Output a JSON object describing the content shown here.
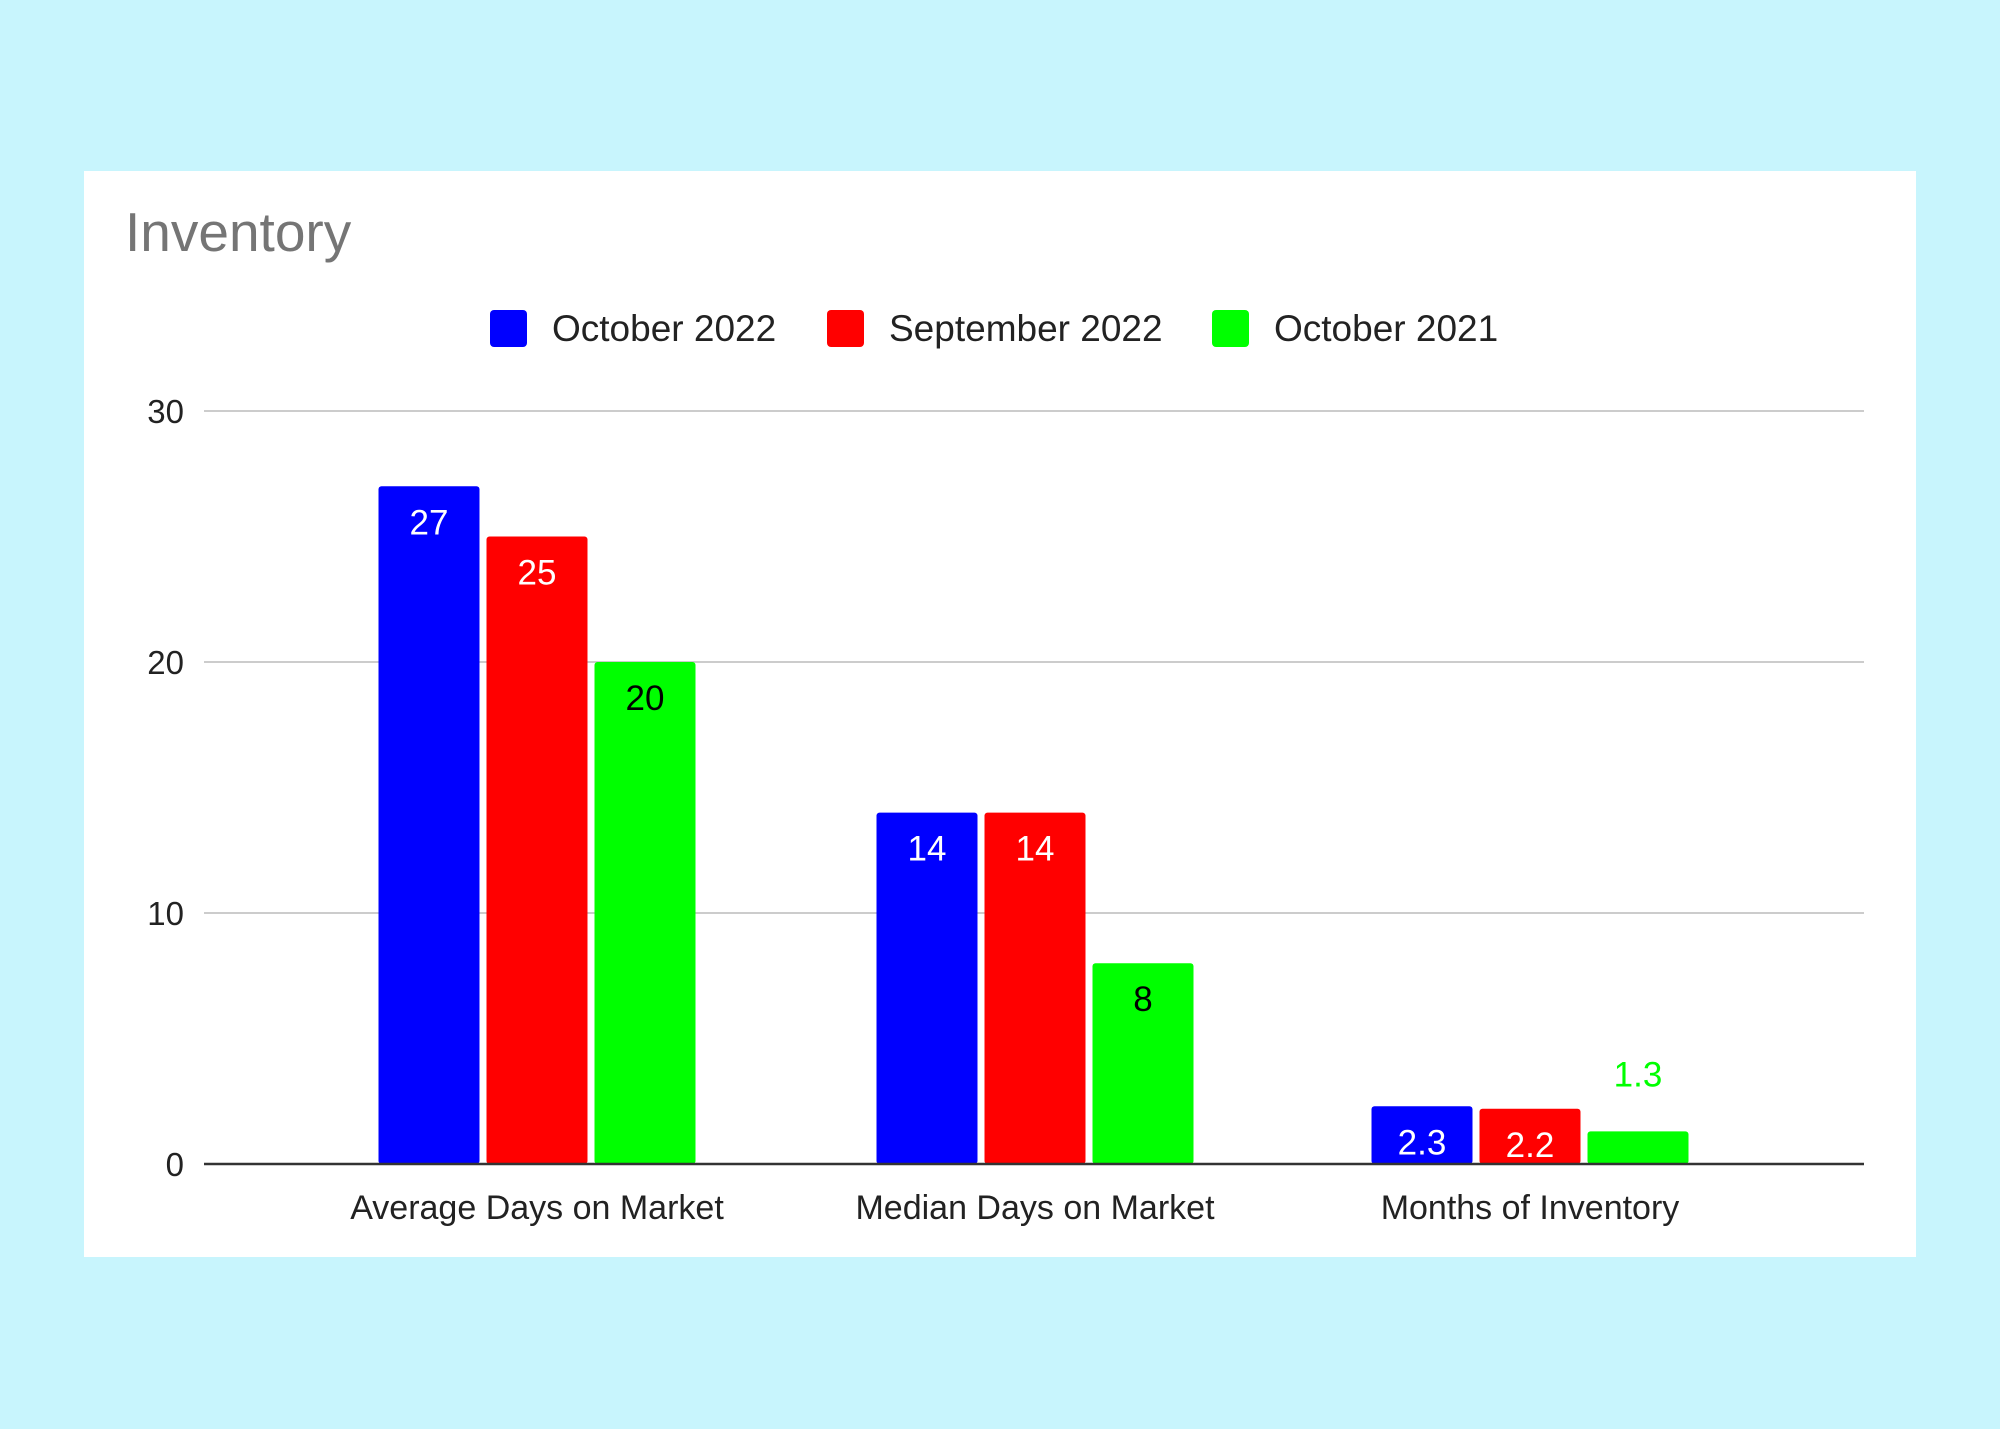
{
  "chart_data": {
    "type": "bar",
    "title": "Inventory",
    "categories": [
      "Average Days on Market",
      "Median Days on Market",
      "Months of Inventory"
    ],
    "series": [
      {
        "name": "October 2022",
        "color": "#0000ff",
        "label_color": "#ffffff",
        "values": [
          27,
          14,
          2.3
        ],
        "labels": [
          "27",
          "14",
          "2.3"
        ]
      },
      {
        "name": "September 2022",
        "color": "#ff0000",
        "label_color": "#ffffff",
        "values": [
          25,
          14,
          2.2
        ],
        "labels": [
          "25",
          "14",
          "2.2"
        ]
      },
      {
        "name": "October 2021",
        "color": "#00ff00",
        "label_color": "#000000",
        "values": [
          20,
          8,
          1.3
        ],
        "labels": [
          "20",
          "8",
          "1.3"
        ]
      }
    ],
    "yticks": [
      0,
      10,
      20,
      30
    ],
    "ylim": [
      0,
      30
    ],
    "xlabel": "",
    "ylabel": "",
    "grid": true,
    "legend_position": "top"
  }
}
